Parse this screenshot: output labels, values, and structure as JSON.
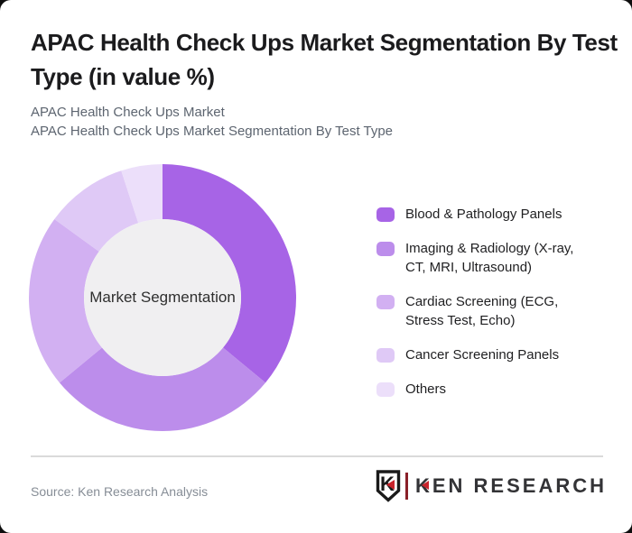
{
  "header": {
    "title_line1": "APAC Health Check Ups Market Segmentation By Test",
    "title_line2": "Type (in value %)",
    "subtitle_line1": "APAC Health Check Ups Market",
    "subtitle_line2": "APAC Health Check Ups Market Segmentation By Test Type"
  },
  "chart_data": {
    "type": "pie",
    "subtype": "donut",
    "title": "APAC Health Check Ups Market Segmentation By Test Type (in value %)",
    "center_label": "Market Segmentation",
    "unit": "value %",
    "start_angle_deg": 0,
    "direction": "clockwise",
    "legend_position": "right",
    "inner_circle_color": "#f0eff1",
    "segments": [
      {
        "label": "Blood & Pathology Panels",
        "value": 36,
        "color": "#a764e6"
      },
      {
        "label": "Imaging & Radiology (X-ray, CT, MRI, Ultrasound)",
        "value": 28,
        "color": "#bc8deb"
      },
      {
        "label": "Cardiac Screening (ECG, Stress Test, Echo)",
        "value": 21,
        "color": "#d2b0f2"
      },
      {
        "label": "Cancer Screening Panels",
        "value": 10,
        "color": "#dfc9f6"
      },
      {
        "label": "Others",
        "value": 5,
        "color": "#ecdffa"
      }
    ]
  },
  "footer": {
    "source": "Source: Ken Research Analysis",
    "logo_emblem_letter": "K",
    "logo_text": "KEN RESEARCH"
  }
}
